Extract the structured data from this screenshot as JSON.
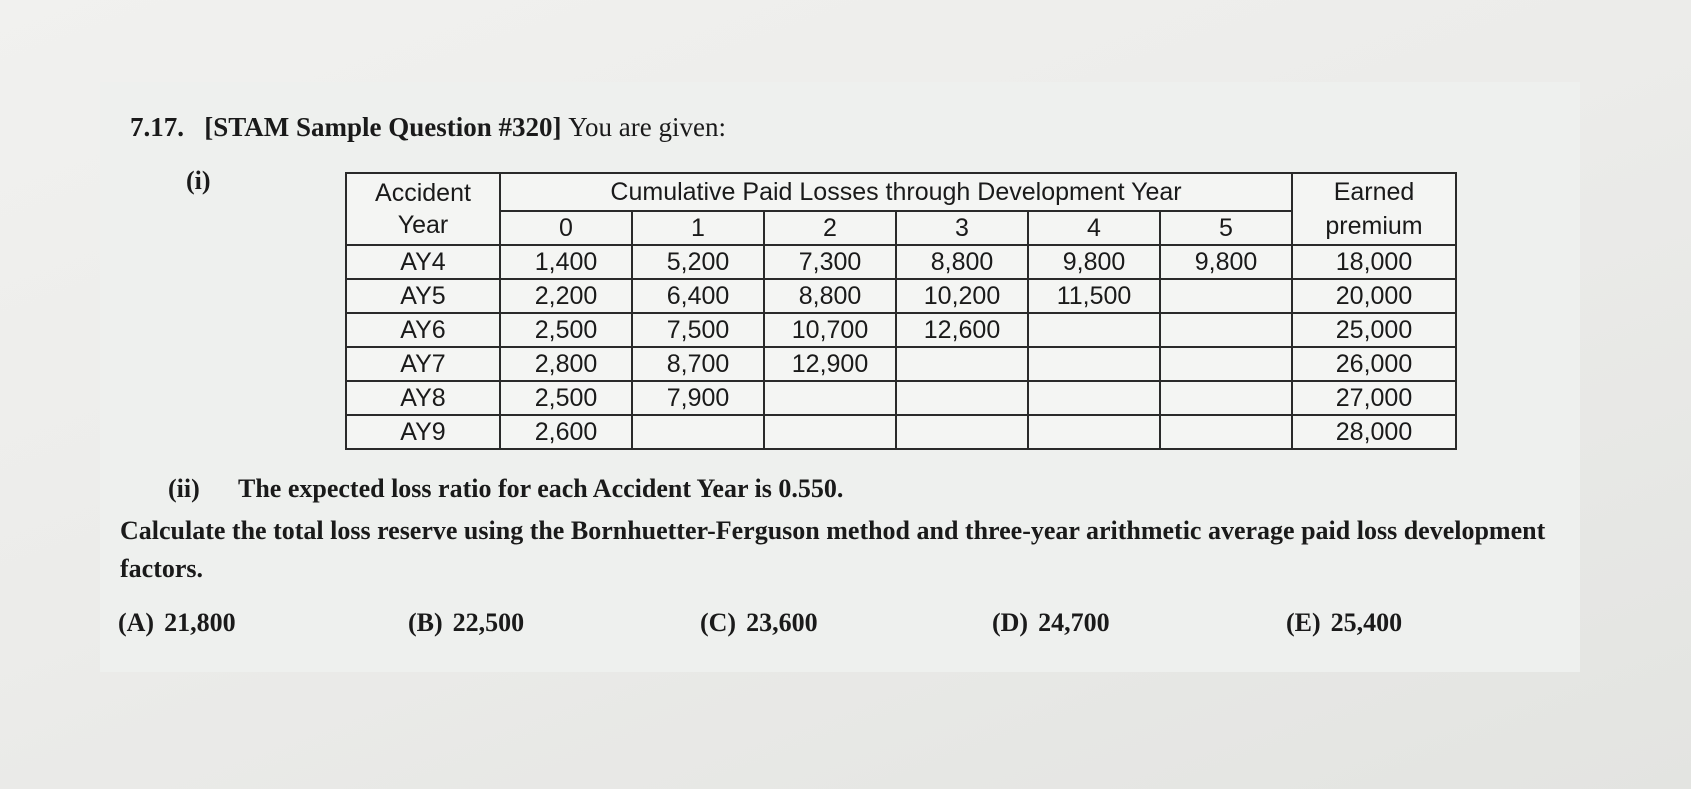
{
  "question": {
    "number": "7.17.",
    "source": "[STAM Sample Question #320]",
    "intro": "You are given:"
  },
  "part_i": {
    "label": "(i)",
    "table": {
      "ay_header_line1": "Accident",
      "ay_header_line2": "Year",
      "group_header": "Cumulative Paid Losses through Development Year",
      "ep_header_line1": "Earned",
      "ep_header_line2": "premium",
      "dev_years": [
        "0",
        "1",
        "2",
        "3",
        "4",
        "5"
      ],
      "rows": [
        {
          "ay": "AY4",
          "cells": [
            "1,400",
            "5,200",
            "7,300",
            "8,800",
            "9,800",
            "9,800"
          ],
          "premium": "18,000"
        },
        {
          "ay": "AY5",
          "cells": [
            "2,200",
            "6,400",
            "8,800",
            "10,200",
            "11,500",
            ""
          ],
          "premium": "20,000"
        },
        {
          "ay": "AY6",
          "cells": [
            "2,500",
            "7,500",
            "10,700",
            "12,600",
            "",
            ""
          ],
          "premium": "25,000"
        },
        {
          "ay": "AY7",
          "cells": [
            "2,800",
            "8,700",
            "12,900",
            "",
            "",
            ""
          ],
          "premium": "26,000"
        },
        {
          "ay": "AY8",
          "cells": [
            "2,500",
            "7,900",
            "",
            "",
            "",
            ""
          ],
          "premium": "27,000"
        },
        {
          "ay": "AY9",
          "cells": [
            "2,600",
            "",
            "",
            "",
            "",
            ""
          ],
          "premium": "28,000"
        }
      ]
    }
  },
  "part_ii": {
    "label": "(ii)",
    "text": "The expected loss ratio for each Accident Year is 0.550."
  },
  "instruction": "Calculate the total loss reserve using the Bornhuetter-Ferguson method and three-year arithmetic average paid loss development factors.",
  "answers": [
    {
      "letter": "(A)",
      "value": "21,800"
    },
    {
      "letter": "(B)",
      "value": "22,500"
    },
    {
      "letter": "(C)",
      "value": "23,600"
    },
    {
      "letter": "(D)",
      "value": "24,700"
    },
    {
      "letter": "(E)",
      "value": "25,400"
    }
  ]
}
